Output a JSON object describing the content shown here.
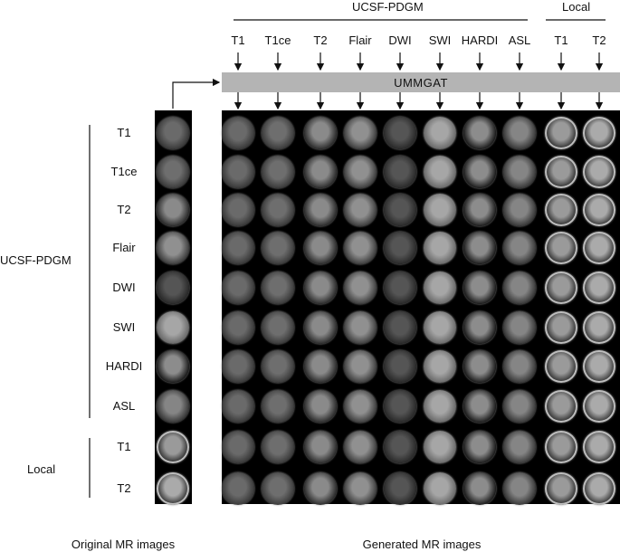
{
  "top_groups": [
    {
      "name": "UCSF-PDGM"
    },
    {
      "name": "Local"
    }
  ],
  "columns": [
    "T1",
    "T1ce",
    "T2",
    "Flair",
    "DWI",
    "SWI",
    "HARDI",
    "ASL",
    "T1",
    "T2"
  ],
  "model": {
    "label": "UMMGAT"
  },
  "left_groups": [
    {
      "name": "UCSF-PDGM"
    },
    {
      "name": "Local"
    }
  ],
  "rows": [
    "T1",
    "T1ce",
    "T2",
    "Flair",
    "DWI",
    "SWI",
    "HARDI",
    "ASL",
    "T1",
    "T2"
  ],
  "captions": {
    "original": "Original MR images",
    "generated": "Generated MR images"
  }
}
